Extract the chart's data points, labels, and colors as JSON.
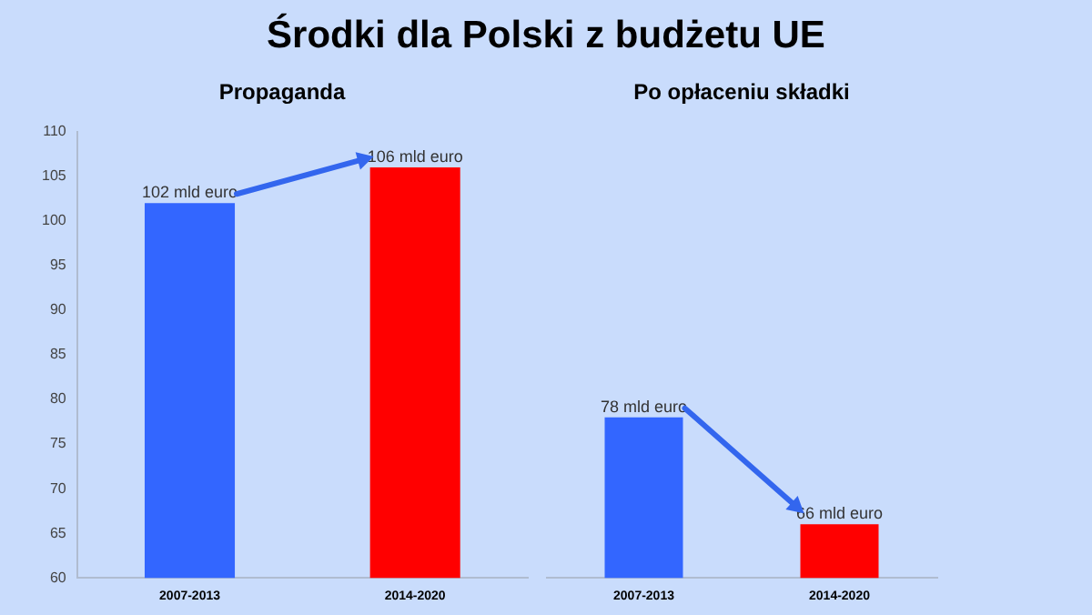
{
  "chart_data": [
    {
      "type": "bar",
      "title": "Środki dla Polski z budżetu UE",
      "subtitle": "Propaganda",
      "categories": [
        "2007-2013",
        "2014-2020"
      ],
      "values": [
        102,
        106
      ],
      "colors": [
        "#3366ff",
        "#ff0000"
      ],
      "value_labels": [
        "102 mld euro",
        "106 mld euro"
      ],
      "ylim": [
        60,
        110
      ],
      "yticks": [
        60,
        65,
        70,
        75,
        80,
        85,
        90,
        95,
        100,
        105,
        110
      ]
    },
    {
      "type": "bar",
      "subtitle": "Po opłaceniu składki",
      "categories": [
        "2007-2013",
        "2014-2020"
      ],
      "values": [
        78,
        66
      ],
      "colors": [
        "#3366ff",
        "#ff0000"
      ],
      "value_labels": [
        "78 mld euro",
        "66 mld euro"
      ],
      "ylim": [
        60,
        110
      ],
      "yticks": [
        60,
        65,
        70,
        75,
        80,
        85,
        90,
        95,
        100,
        105,
        110
      ],
      "tick_labels": "x"
    }
  ]
}
